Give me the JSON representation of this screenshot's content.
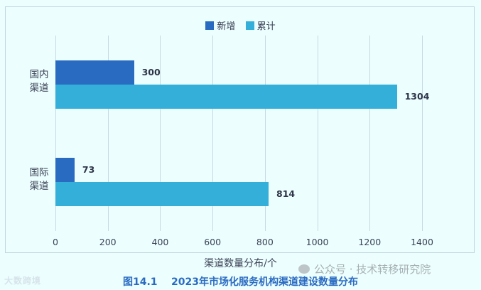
{
  "chart_data": {
    "type": "bar",
    "orientation": "horizontal",
    "title": "",
    "caption": "图14.1    2023年市场化服务机构渠道建设数量分布",
    "xlabel": "渠道数量分布/个",
    "ylabel": "",
    "categories": [
      "国内渠道",
      "国际渠道"
    ],
    "category_lines": [
      [
        "国内",
        "渠道"
      ],
      [
        "国际",
        "渠道"
      ]
    ],
    "series": [
      {
        "name": "新增",
        "color": "#2a6bc2",
        "values": [
          300,
          73
        ]
      },
      {
        "name": "累计",
        "color": "#33afd9",
        "values": [
          1304,
          814
        ]
      }
    ],
    "xlim": [
      0,
      1400
    ],
    "x_ticks": [
      "0",
      "200",
      "400",
      "600",
      "800",
      "1000",
      "1200",
      "1400"
    ],
    "grid": true,
    "legend_position": "top",
    "data_labels": true
  },
  "watermarks": {
    "wechat": "公众号 · 技术转移研究院",
    "logo": "大数跨境"
  }
}
